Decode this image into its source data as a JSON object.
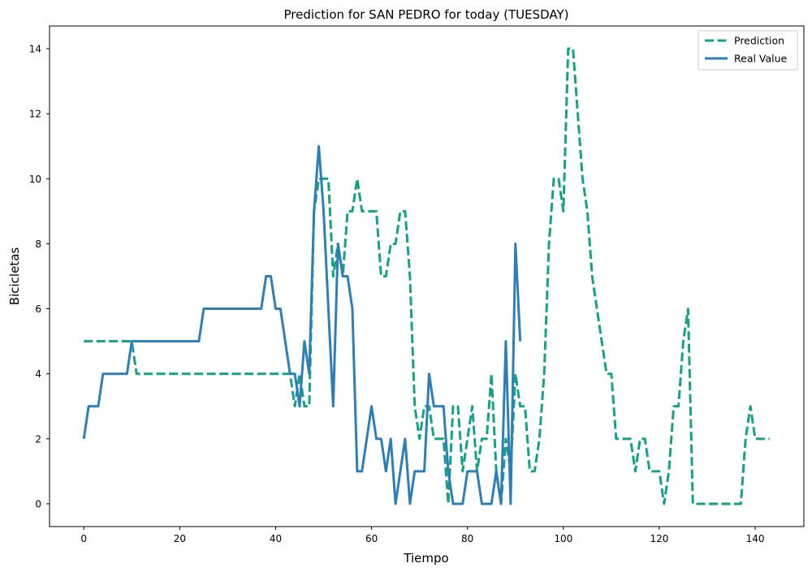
{
  "chart_data": {
    "type": "line",
    "title": "Prediction for SAN PEDRO for today (TUESDAY)",
    "xlabel": "Tiempo",
    "ylabel": "Bicicletas",
    "xlim": [
      -7.15,
      150.15
    ],
    "ylim": [
      -0.7,
      14.7
    ],
    "xticks": [
      0,
      20,
      40,
      60,
      80,
      100,
      120,
      140
    ],
    "yticks": [
      0,
      2,
      4,
      6,
      8,
      10,
      12,
      14
    ],
    "grid": false,
    "legend_position": "top-right",
    "series": [
      {
        "name": "Prediction",
        "color": "#16a085",
        "dash": true,
        "x": [
          0,
          1,
          2,
          3,
          4,
          5,
          6,
          7,
          8,
          9,
          10,
          11,
          12,
          13,
          14,
          15,
          16,
          17,
          18,
          19,
          20,
          21,
          22,
          23,
          24,
          25,
          26,
          27,
          28,
          29,
          30,
          31,
          32,
          33,
          34,
          35,
          36,
          37,
          38,
          39,
          40,
          41,
          42,
          43,
          44,
          45,
          46,
          47,
          48,
          49,
          50,
          51,
          52,
          53,
          54,
          55,
          56,
          57,
          58,
          59,
          60,
          61,
          62,
          63,
          64,
          65,
          66,
          67,
          68,
          69,
          70,
          71,
          72,
          73,
          74,
          75,
          76,
          77,
          78,
          79,
          80,
          81,
          82,
          83,
          84,
          85,
          86,
          87,
          88,
          89,
          90,
          91,
          92,
          93,
          94,
          95,
          96,
          97,
          98,
          99,
          100,
          101,
          102,
          103,
          104,
          105,
          106,
          107,
          108,
          109,
          110,
          111,
          112,
          113,
          114,
          115,
          116,
          117,
          118,
          119,
          120,
          121,
          122,
          123,
          124,
          125,
          126,
          127,
          128,
          129,
          130,
          131,
          132,
          133,
          134,
          135,
          136,
          137,
          138,
          139,
          140,
          141,
          142,
          143
        ],
        "y": [
          5,
          5,
          5,
          5,
          5,
          5,
          5,
          5,
          5,
          5,
          5,
          4,
          4,
          4,
          4,
          4,
          4,
          4,
          4,
          4,
          4,
          4,
          4,
          4,
          4,
          4,
          4,
          4,
          4,
          4,
          4,
          4,
          4,
          4,
          4,
          4,
          4,
          4,
          4,
          4,
          4,
          4,
          4,
          4,
          3,
          4,
          3,
          3,
          9,
          10,
          10,
          10,
          7,
          8,
          7,
          9,
          9,
          10,
          9,
          9,
          9,
          9,
          7,
          7,
          8,
          8,
          9,
          9,
          7,
          3,
          2,
          3,
          3,
          2,
          2,
          2,
          0,
          3,
          3,
          1,
          2,
          3,
          1,
          2,
          2,
          4,
          1,
          0,
          2,
          1,
          4,
          3,
          3,
          1,
          1,
          2,
          4,
          8,
          10,
          10,
          9,
          14,
          14,
          12,
          10,
          9,
          7,
          6,
          5,
          4,
          4,
          2,
          2,
          2,
          2,
          1,
          2,
          2,
          1,
          1,
          1,
          0,
          1,
          3,
          3,
          5,
          6,
          0,
          0,
          0,
          0,
          0,
          0,
          0,
          0,
          0,
          0,
          0,
          2,
          3,
          2,
          2,
          2,
          2
        ]
      },
      {
        "name": "Real Value",
        "color": "#2e7fb8",
        "dash": false,
        "x": [
          0,
          1,
          2,
          3,
          4,
          5,
          6,
          7,
          8,
          9,
          10,
          11,
          12,
          13,
          14,
          15,
          16,
          17,
          18,
          19,
          20,
          21,
          22,
          23,
          24,
          25,
          26,
          27,
          28,
          29,
          30,
          31,
          32,
          33,
          34,
          35,
          36,
          37,
          38,
          39,
          40,
          41,
          42,
          43,
          44,
          45,
          46,
          47,
          48,
          49,
          50,
          51,
          52,
          53,
          54,
          55,
          56,
          57,
          58,
          59,
          60,
          61,
          62,
          63,
          64,
          65,
          66,
          67,
          68,
          69,
          70,
          71,
          72,
          73,
          74,
          75,
          76,
          77,
          78,
          79,
          80,
          81,
          82,
          83,
          84,
          85,
          86,
          87,
          88,
          89,
          90,
          91
        ],
        "y": [
          2,
          3,
          3,
          3,
          4,
          4,
          4,
          4,
          4,
          4,
          5,
          5,
          5,
          5,
          5,
          5,
          5,
          5,
          5,
          5,
          5,
          5,
          5,
          5,
          5,
          6,
          6,
          6,
          6,
          6,
          6,
          6,
          6,
          6,
          6,
          6,
          6,
          6,
          7,
          7,
          6,
          6,
          5,
          4,
          4,
          3,
          5,
          4,
          9,
          11,
          9,
          6,
          3,
          8,
          7,
          7,
          6,
          1,
          1,
          2,
          3,
          2,
          2,
          1,
          2,
          0,
          1,
          2,
          0,
          1,
          1,
          1,
          4,
          3,
          3,
          3,
          1,
          0,
          0,
          0,
          1,
          1,
          1,
          0,
          0,
          0,
          1,
          0,
          5,
          0,
          8,
          5
        ]
      }
    ]
  }
}
